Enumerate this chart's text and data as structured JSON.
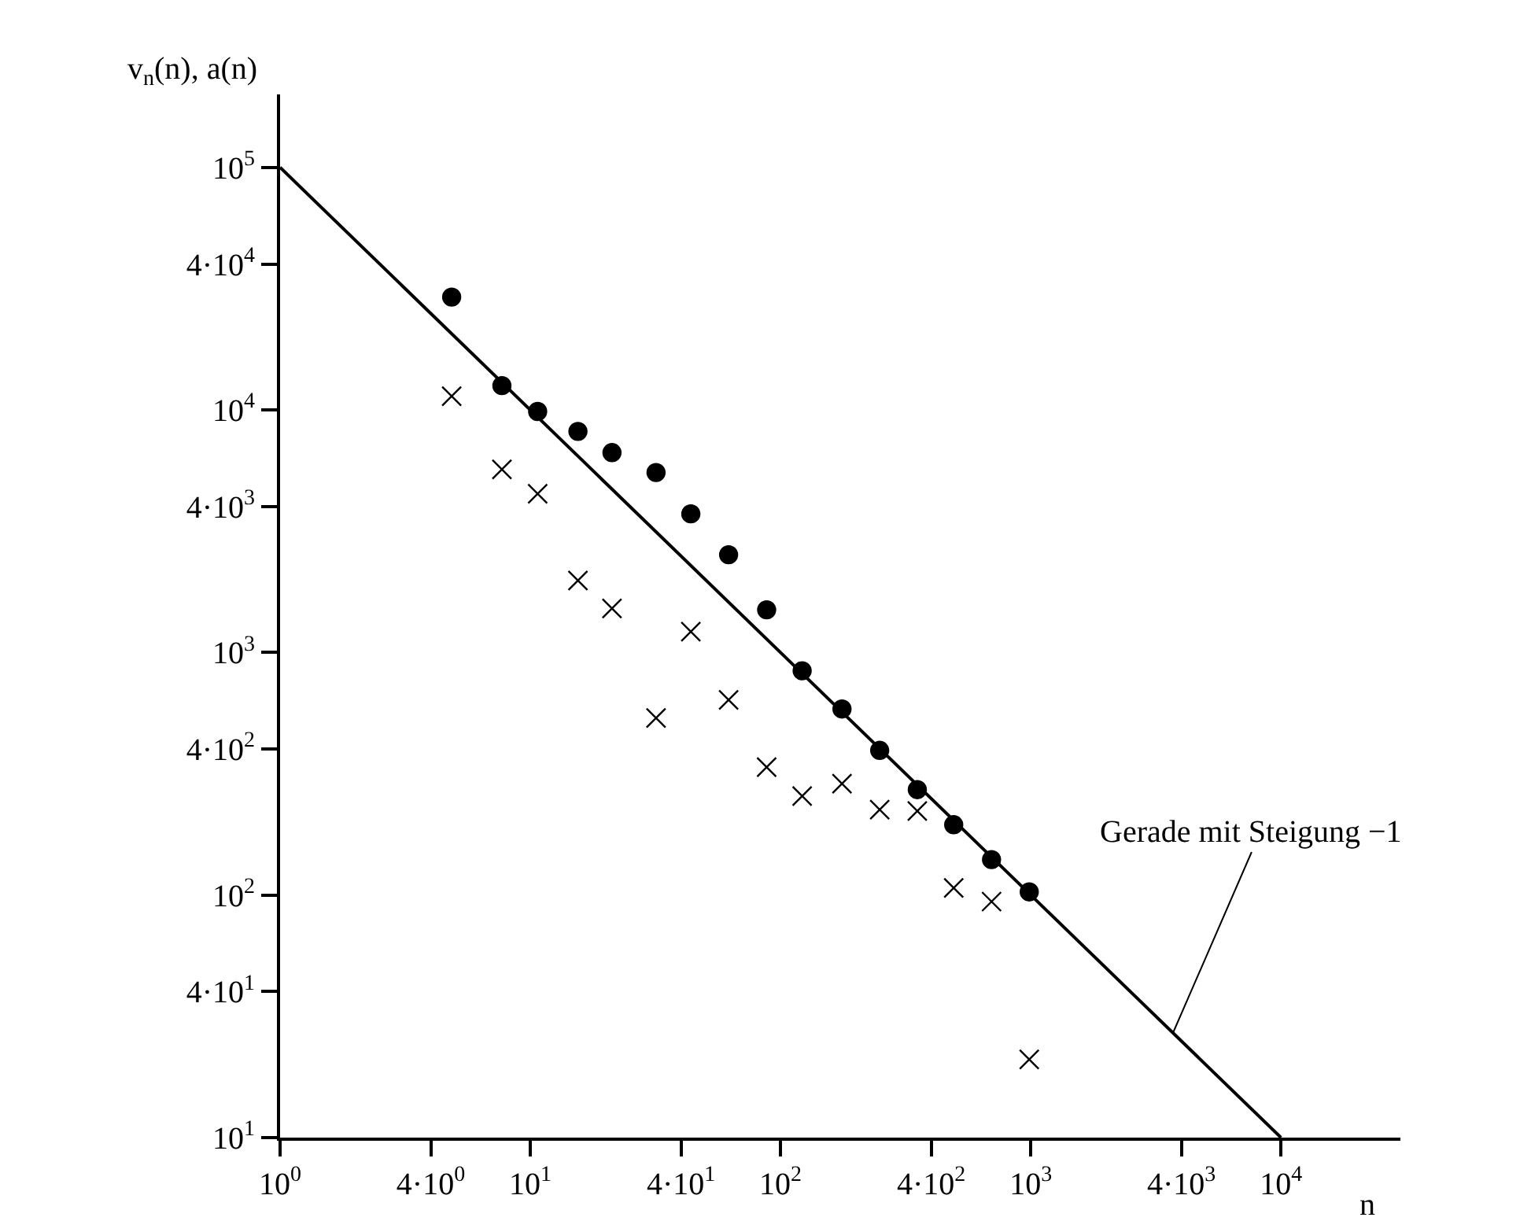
{
  "chart_data": {
    "type": "scatter",
    "xlabel": "n",
    "ylabel": "v$_{n}$(n), a(n)",
    "log": "xy",
    "xlim": [
      1,
      30000
    ],
    "ylim": [
      10,
      200000
    ],
    "xticks": [
      {
        "value": 1,
        "label": "10$^{0}$"
      },
      {
        "value": 4,
        "label": "4·10$^{0}$"
      },
      {
        "value": 10,
        "label": "10$^{1}$"
      },
      {
        "value": 40,
        "label": "4·10$^{1}$"
      },
      {
        "value": 100,
        "label": "10$^{2}$"
      },
      {
        "value": 400,
        "label": "4·10$^{2}$"
      },
      {
        "value": 1000,
        "label": "10$^{3}$"
      },
      {
        "value": 4000,
        "label": "4·10$^{3}$"
      },
      {
        "value": 10000,
        "label": "10$^{4}$"
      }
    ],
    "yticks": [
      {
        "value": 10,
        "label": "10$^{1}$"
      },
      {
        "value": 40,
        "label": "4·10$^{1}$"
      },
      {
        "value": 100,
        "label": "10$^{2}$"
      },
      {
        "value": 400,
        "label": "4·10$^{2}$"
      },
      {
        "value": 1000,
        "label": "10$^{3}$"
      },
      {
        "value": 4000,
        "label": "4·10$^{3}$"
      },
      {
        "value": 10000,
        "label": "10$^{4}$"
      },
      {
        "value": 40000,
        "label": "4·10$^{4}$"
      },
      {
        "value": 100000,
        "label": "10$^{5}$"
      }
    ],
    "series": [
      {
        "marker": "circle",
        "color": "#000000",
        "x": [
          4.85,
          7.7,
          10.7,
          15.5,
          21.2,
          31.8,
          43.8,
          62,
          88,
          122,
          176,
          249,
          352,
          492,
          697,
          986
        ],
        "values": [
          29200,
          12600,
          9860,
          8160,
          6670,
          5520,
          3730,
          2530,
          1500,
          841,
          585,
          395,
          272,
          195,
          140,
          103
        ]
      },
      {
        "marker": "cross",
        "color": "#000000",
        "x": [
          4.85,
          7.7,
          10.7,
          15.5,
          21.2,
          31.8,
          43.8,
          62,
          88,
          122,
          176,
          249,
          352,
          492,
          697,
          986
        ],
        "values": [
          11400,
          5690,
          4510,
          1980,
          1520,
          537,
          1220,
          638,
          337,
          256,
          288,
          225,
          222,
          107,
          94,
          21
        ]
      },
      {
        "type": "line",
        "marker": "none",
        "line_style": "solid",
        "color": "#000000",
        "x": [
          1,
          10000
        ],
        "values": [
          100000,
          10
        ]
      }
    ],
    "annotations": [
      {
        "text": "Gerade mit Steigung −1",
        "x": 3700,
        "y": 27
      }
    ]
  }
}
